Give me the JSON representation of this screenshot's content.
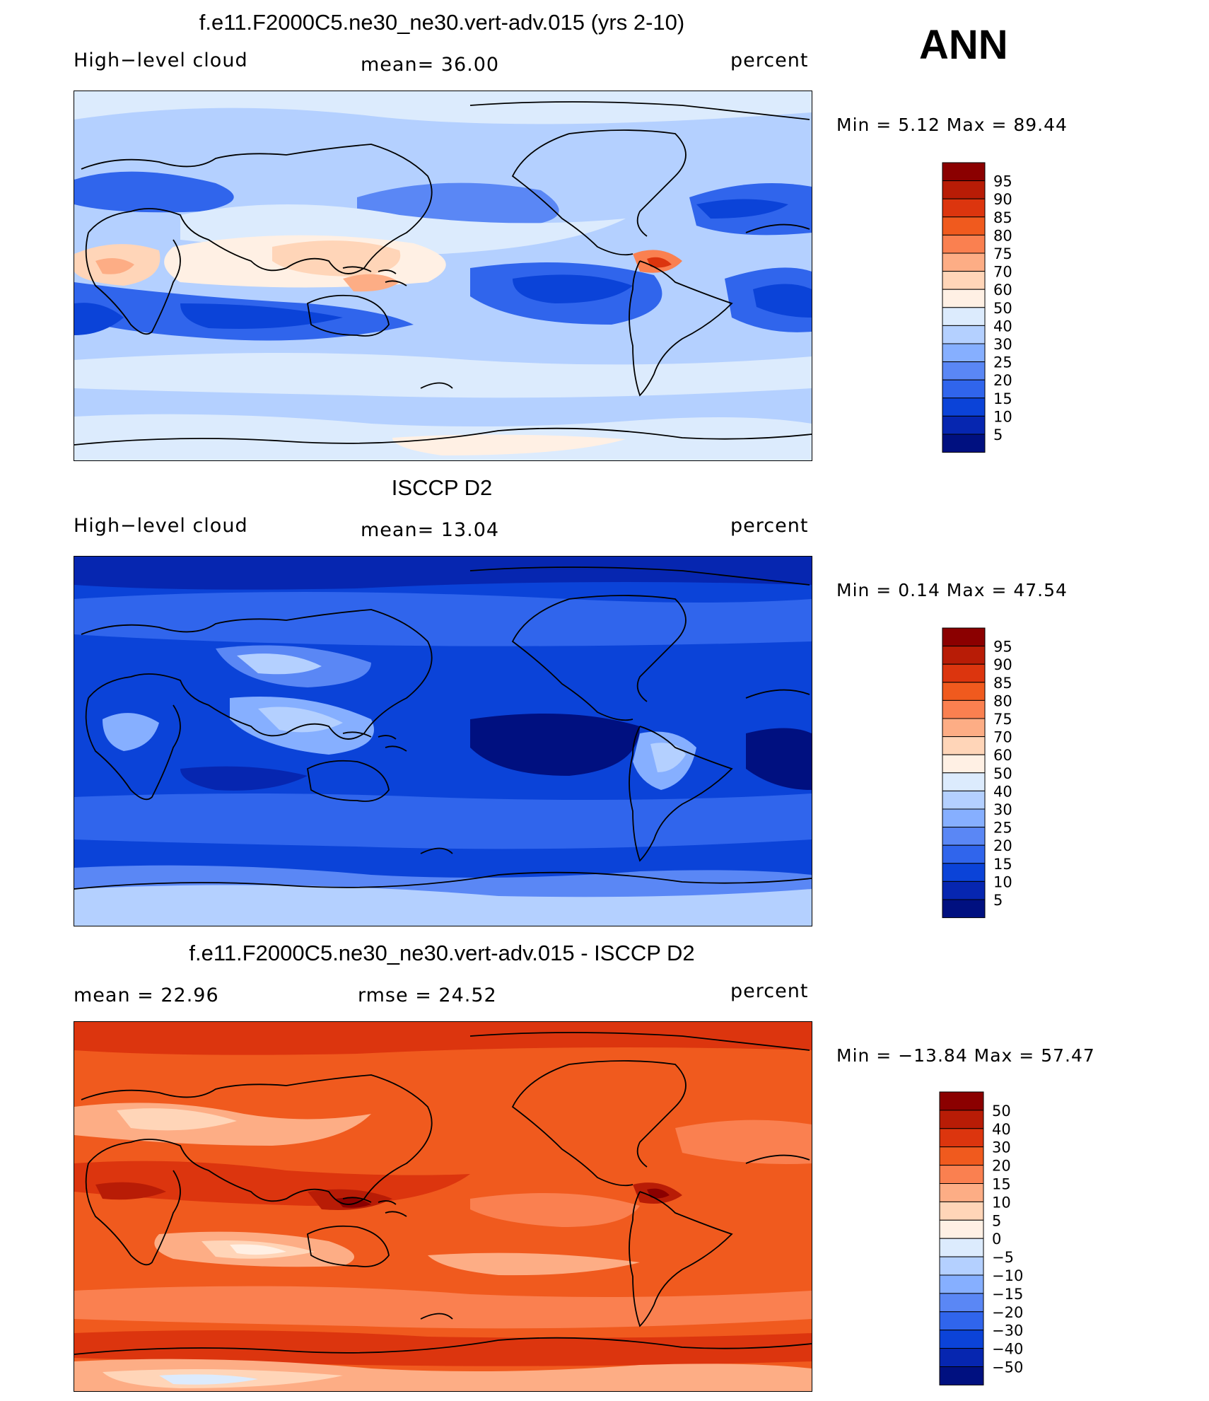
{
  "annotation": "ANN",
  "panels": [
    {
      "id": "model",
      "title": "f.e11.F2000C5.ne30_ne30.vert-adv.015 (yrs 2-10)",
      "left_label": "High−level cloud",
      "center_label": "mean=   36.00",
      "right_label": "percent",
      "minmax": "Min  =     5.12  Max  =    89.44",
      "background": "#b4d0ff"
    },
    {
      "id": "obs",
      "title": "ISCCP D2",
      "left_label": "High−level cloud",
      "center_label": "mean=   13.04",
      "right_label": "percent",
      "minmax": "Min  =     0.14  Max  =    47.54",
      "background": "#0a3fdc"
    },
    {
      "id": "diff",
      "title": "f.e11.F2000C5.ne30_ne30.vert-adv.015 - ISCCP D2",
      "left_label": "mean  =    22.96",
      "center_label": "rmse  =    24.52",
      "right_label": "percent",
      "minmax": "Min  = −13.84  Max  =    57.47",
      "background": "#e8431a"
    }
  ],
  "colorbars": {
    "abs": {
      "labels": [
        "95",
        "90",
        "85",
        "80",
        "75",
        "70",
        "60",
        "50",
        "40",
        "30",
        "25",
        "20",
        "15",
        "10",
        "5"
      ],
      "colors": [
        "#8b0000",
        "#b81c06",
        "#dc350e",
        "#f05a1e",
        "#fa8050",
        "#fdad85",
        "#ffd5b8",
        "#fff0e4",
        "#dcebfd",
        "#b4d0ff",
        "#86afff",
        "#5a87f5",
        "#3065ec",
        "#0b43d8",
        "#0626b0",
        "#001080"
      ]
    },
    "diff": {
      "labels": [
        "50",
        "40",
        "30",
        "20",
        "15",
        "10",
        "5",
        "0",
        "−5",
        "−10",
        "−15",
        "−20",
        "−30",
        "−40",
        "−50"
      ],
      "colors": [
        "#8b0000",
        "#b81c06",
        "#dc350e",
        "#f05a1e",
        "#fa8050",
        "#fdad85",
        "#ffd5b8",
        "#fff0e4",
        "#dcebfd",
        "#b4d0ff",
        "#86afff",
        "#5a87f5",
        "#3065ec",
        "#0b43d8",
        "#0626b0",
        "#001080"
      ]
    }
  }
}
